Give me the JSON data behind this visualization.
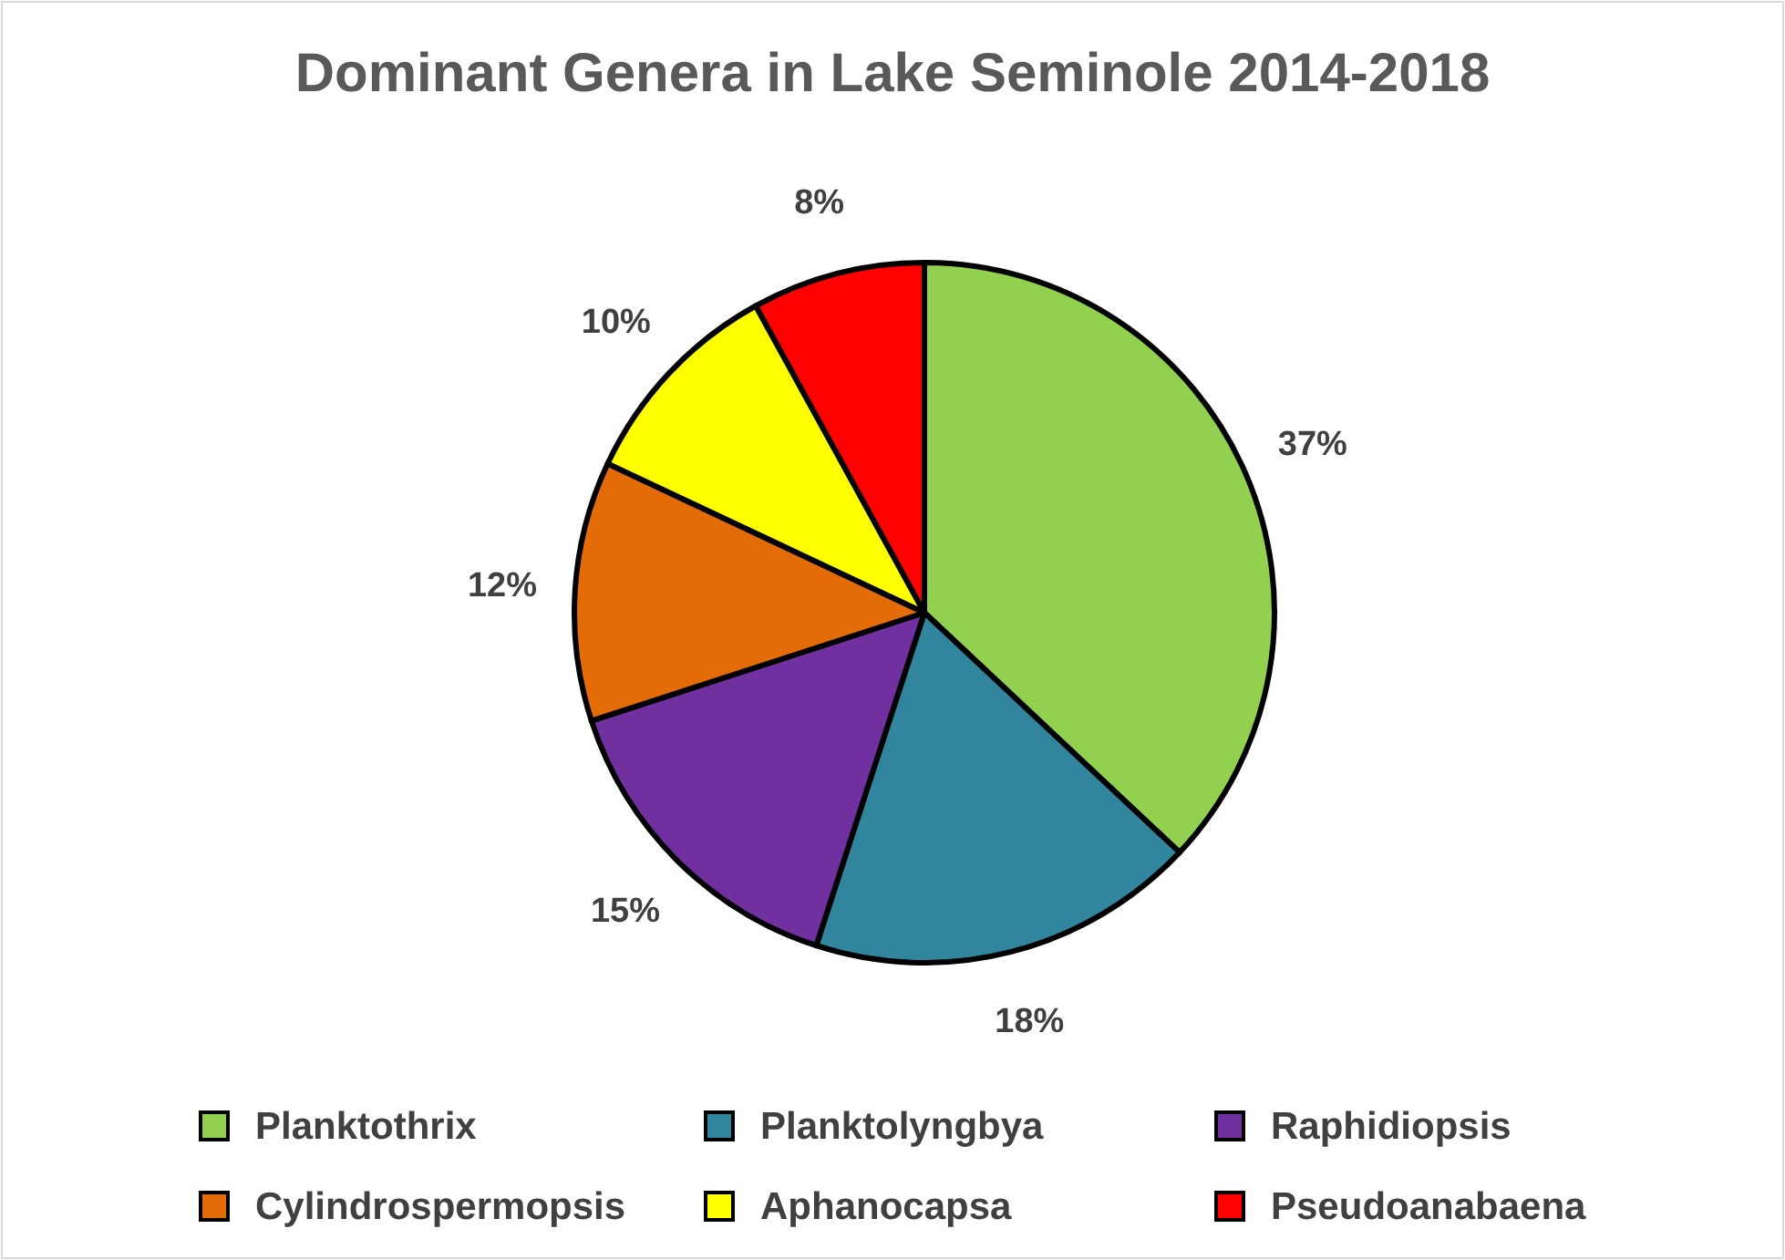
{
  "chart_data": {
    "type": "pie",
    "title": "Dominant Genera in Lake Seminole 2014-2018",
    "categories": [
      "Planktothrix",
      "Planktolyngbya",
      "Raphidiopsis",
      "Cylindrospermopsis",
      "Aphanocapsa",
      "Pseudoanabaena"
    ],
    "values": [
      37,
      18,
      15,
      12,
      10,
      8
    ],
    "colors": [
      "#92d050",
      "#31859c",
      "#7030a0",
      "#e36c09",
      "#ffff00",
      "#ff0000"
    ],
    "value_labels": [
      "37%",
      "18%",
      "15%",
      "12%",
      "10%",
      "8%"
    ],
    "legend": "bottom"
  }
}
